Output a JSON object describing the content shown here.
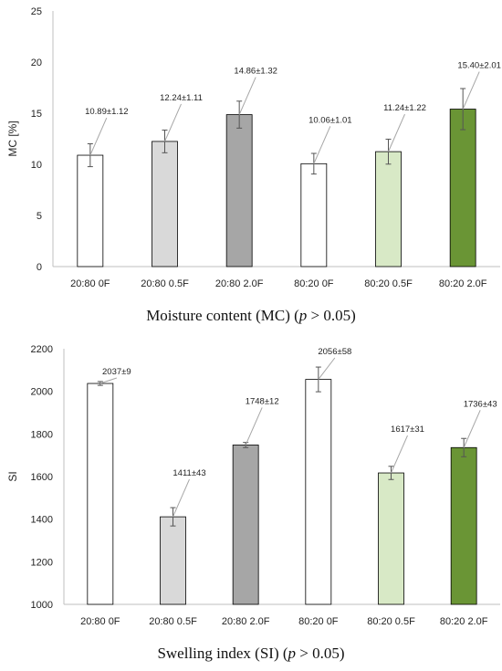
{
  "chart_data": [
    {
      "type": "bar",
      "title": "",
      "caption": {
        "main": "Moisture content (MC) (",
        "p": "p",
        "tail": " > 0.05)"
      },
      "xlabel": "",
      "ylabel": "MC [%]",
      "ylim": [
        0,
        25
      ],
      "yticks": [
        0,
        5,
        10,
        15,
        20,
        25
      ],
      "categories": [
        "20:80 0F",
        "20:80 0.5F",
        "20:80 2.0F",
        "80:20 0F",
        "80:20 0.5F",
        "80:20 2.0F"
      ],
      "values": [
        10.89,
        12.24,
        14.86,
        10.06,
        11.24,
        15.4
      ],
      "errors": [
        1.12,
        1.11,
        1.32,
        1.01,
        1.22,
        2.01
      ],
      "labels": [
        "10.89±1.12",
        "12.24±1.11",
        "14.86±1.32",
        "10.06±1.01",
        "11.24±1.22",
        "15.40±2.01"
      ],
      "colors": [
        "#ffffff",
        "#d9d9d9",
        "#a6a6a6",
        "#ffffff",
        "#d8e9c6",
        "#6a9535"
      ],
      "grid": false
    },
    {
      "type": "bar",
      "title": "",
      "caption": {
        "main": "Swelling index (SI) (",
        "p": "p",
        "tail": " > 0.05)"
      },
      "xlabel": "",
      "ylabel": "SI",
      "ylim": [
        1000,
        2200
      ],
      "yticks": [
        1000,
        1200,
        1400,
        1600,
        1800,
        2000,
        2200
      ],
      "categories": [
        "20:80 0F",
        "20:80 0.5F",
        "20:80 2.0F",
        "80:20 0F",
        "80:20 0.5F",
        "80:20 2.0F"
      ],
      "values": [
        2037,
        1411,
        1748,
        2056,
        1617,
        1736
      ],
      "errors": [
        9,
        43,
        12,
        58,
        31,
        43
      ],
      "labels": [
        "2037±9",
        "1411±43",
        "1748±12",
        "2056±58",
        "1617±31",
        "1736±43"
      ],
      "colors": [
        "#ffffff",
        "#d9d9d9",
        "#a6a6a6",
        "#ffffff",
        "#d8e9c6",
        "#6a9535"
      ],
      "grid": false
    }
  ]
}
